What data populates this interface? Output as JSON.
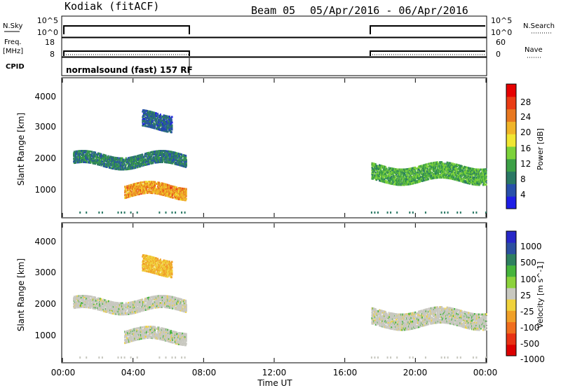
{
  "header": {
    "radar": "Kodiak (fitACF)",
    "beam": "Beam 05",
    "dates": "05/Apr/2016 - 06/Apr/2016"
  },
  "top_panels": {
    "nsky_label": "N.Sky",
    "nsky_ticks": [
      "10^5",
      "10^0"
    ],
    "nsearch_label": "N.Search",
    "nsearch_ticks": [
      "10^5",
      "10^0"
    ],
    "freq_label": "Freq.",
    "freq_unit": "[MHz]",
    "freq_ticks": [
      "18",
      "8"
    ],
    "nave_label": "Nave",
    "nave_ticks": [
      "60",
      "0"
    ],
    "cpid_label": "CPID",
    "cpid_value": "normalsound (fast) 157 RF"
  },
  "xaxis": {
    "label": "Time UT",
    "ticks": [
      "00:00",
      "04:00",
      "08:00",
      "12:00",
      "16:00",
      "20:00",
      "00:00"
    ]
  },
  "colors": {
    "power": [
      "#1e1ee6",
      "#2850aa",
      "#2a7864",
      "#3ca046",
      "#7cd23a",
      "#f0e632",
      "#f0b428",
      "#e87820",
      "#ea3c14",
      "#e60000"
    ],
    "velocity": [
      "#2828c8",
      "#2c50a0",
      "#2e8060",
      "#46b43c",
      "#8cd23c",
      "#c8c8c0",
      "#f0d23c",
      "#f0a028",
      "#f06e1e",
      "#e83214",
      "#dc0000"
    ]
  },
  "chart_data": [
    {
      "type": "heatmap",
      "title": "",
      "xlabel": "Time UT",
      "ylabel": "Slant Range [km]",
      "xlim": [
        0,
        24
      ],
      "ylim": [
        0,
        4500
      ],
      "yticks": [
        "1000",
        "2000",
        "3000",
        "4000"
      ],
      "colorbar": {
        "label": "Power [dB]",
        "range": [
          0,
          32
        ],
        "ticks": [
          "4",
          "8",
          "12",
          "16",
          "20",
          "24",
          "28"
        ]
      },
      "data_windows_hours": [
        [
          0.6,
          7.0
        ],
        [
          17.3,
          24.0
        ]
      ],
      "echo_regions": [
        {
          "t_start": 0.6,
          "t_end": 7.0,
          "range_km": [
            1700,
            2100
          ],
          "power_db": 8
        },
        {
          "t_start": 3.5,
          "t_end": 7.0,
          "range_km": [
            700,
            1100
          ],
          "power_db": 22
        },
        {
          "t_start": 4.5,
          "t_end": 6.2,
          "range_km": [
            2900,
            3400
          ],
          "power_db": 6
        },
        {
          "t_start": 17.5,
          "t_end": 24.0,
          "range_km": [
            1200,
            1700
          ],
          "power_db": 12
        }
      ]
    },
    {
      "type": "heatmap",
      "title": "",
      "xlabel": "Time UT",
      "ylabel": "Slant Range [km]",
      "xlim": [
        0,
        24
      ],
      "ylim": [
        0,
        4500
      ],
      "yticks": [
        "1000",
        "2000",
        "3000",
        "4000"
      ],
      "colorbar": {
        "label": "Velocity [m s^-1]",
        "range": [
          -1200,
          1200
        ],
        "ticks": [
          "1000",
          "500",
          "100",
          "25",
          "-25",
          "-100",
          "-500",
          "-1000"
        ]
      },
      "data_windows_hours": [
        [
          0.6,
          7.0
        ],
        [
          17.3,
          24.0
        ]
      ],
      "echo_regions": [
        {
          "t_start": 0.6,
          "t_end": 7.0,
          "range_km": [
            1700,
            2100
          ],
          "velocity_ms": 0
        },
        {
          "t_start": 3.5,
          "t_end": 7.0,
          "range_km": [
            700,
            1100
          ],
          "velocity_ms": 0
        },
        {
          "t_start": 4.5,
          "t_end": 6.2,
          "range_km": [
            2900,
            3400
          ],
          "velocity_ms": -100
        },
        {
          "t_start": 17.5,
          "t_end": 24.0,
          "range_km": [
            1200,
            1700
          ],
          "velocity_ms": 0
        }
      ]
    }
  ]
}
